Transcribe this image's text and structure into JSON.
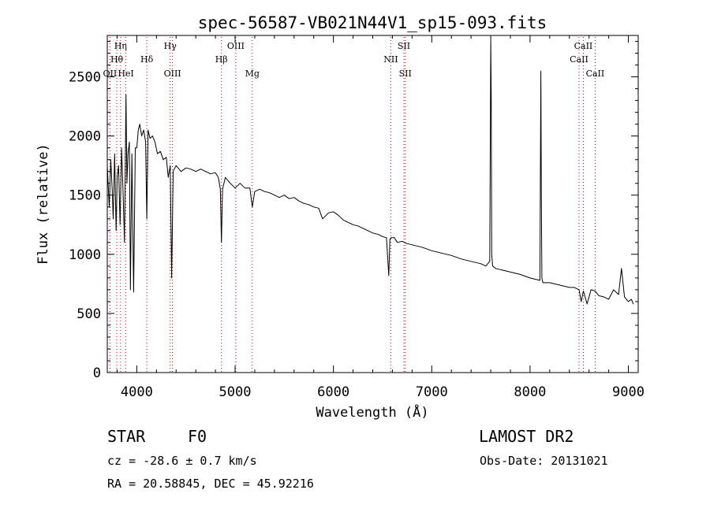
{
  "chart_data": {
    "type": "line",
    "title": "spec-56587-VB021N44V1_sp15-093.fits",
    "xlabel": "Wavelength (Å)",
    "ylabel": "Flux (relative)",
    "xlim": [
      3700,
      9100
    ],
    "ylim": [
      0,
      2850
    ],
    "x_ticks": [
      4000,
      5000,
      6000,
      7000,
      8000,
      9000
    ],
    "y_ticks": [
      0,
      500,
      1000,
      1500,
      2000,
      2500
    ],
    "grid": false,
    "series": [
      {
        "x": [
          3700,
          3720,
          3735,
          3750,
          3760,
          3775,
          3790,
          3800,
          3815,
          3830,
          3845,
          3860,
          3875,
          3890,
          3900,
          3910,
          3925,
          3935,
          3950,
          3968,
          3985,
          4000,
          4015,
          4030,
          4050,
          4070,
          4090,
          4102,
          4115,
          4135,
          4160,
          4185,
          4210,
          4240,
          4270,
          4300,
          4320,
          4340,
          4355,
          4370,
          4400,
          4450,
          4500,
          4550,
          4600,
          4650,
          4700,
          4750,
          4800,
          4830,
          4850,
          4861,
          4872,
          4900,
          4950,
          5000,
          5050,
          5100,
          5150,
          5175,
          5200,
          5250,
          5300,
          5350,
          5400,
          5450,
          5500,
          5550,
          5600,
          5650,
          5700,
          5750,
          5800,
          5850,
          5890,
          5950,
          6000,
          6050,
          6100,
          6150,
          6200,
          6250,
          6300,
          6350,
          6400,
          6450,
          6500,
          6540,
          6563,
          6575,
          6590,
          6620,
          6650,
          6700,
          6750,
          6800,
          6900,
          7000,
          7100,
          7200,
          7300,
          7400,
          7500,
          7550,
          7590,
          7600,
          7605,
          7610,
          7620,
          7650,
          7700,
          7800,
          7900,
          8000,
          8050,
          8100,
          8110,
          8115,
          8120,
          8130,
          8150,
          8200,
          8300,
          8400,
          8450,
          8498,
          8520,
          8542,
          8580,
          8620,
          8662,
          8700,
          8750,
          8800,
          8850,
          8900,
          8930,
          8960,
          9000,
          9030,
          9050
        ],
        "y": [
          1750,
          1400,
          1800,
          1550,
          1300,
          1850,
          1200,
          1650,
          1750,
          1250,
          1900,
          1550,
          1100,
          2350,
          1600,
          1850,
          1950,
          700,
          1850,
          680,
          1900,
          1900,
          2050,
          2100,
          2000,
          2050,
          1950,
          1300,
          2050,
          1980,
          2000,
          1950,
          1850,
          1870,
          1800,
          1820,
          1650,
          1750,
          800,
          1700,
          1750,
          1700,
          1730,
          1720,
          1700,
          1720,
          1700,
          1680,
          1690,
          1650,
          1550,
          1100,
          1550,
          1650,
          1600,
          1560,
          1600,
          1560,
          1560,
          1400,
          1530,
          1550,
          1530,
          1520,
          1500,
          1480,
          1500,
          1470,
          1480,
          1450,
          1430,
          1420,
          1400,
          1390,
          1300,
          1350,
          1360,
          1330,
          1290,
          1270,
          1250,
          1240,
          1220,
          1200,
          1180,
          1170,
          1150,
          1140,
          820,
          1130,
          1140,
          1140,
          1100,
          1110,
          1090,
          1080,
          1060,
          1030,
          1010,
          990,
          960,
          940,
          920,
          900,
          940,
          2820,
          2300,
          1000,
          900,
          880,
          870,
          850,
          830,
          800,
          790,
          780,
          2550,
          1500,
          800,
          760,
          760,
          760,
          740,
          720,
          720,
          700,
          600,
          690,
          580,
          700,
          690,
          650,
          640,
          620,
          700,
          660,
          880,
          640,
          600,
          620,
          580
        ]
      }
    ],
    "lines": [
      {
        "label": "Hη",
        "x": 3835,
        "color": "#cc0000",
        "row": 0
      },
      {
        "label": "Hθ",
        "x": 3797,
        "color": "#cc0000",
        "row": 1
      },
      {
        "label": "OII",
        "x": 3727,
        "color": "#cc0000",
        "row": 2
      },
      {
        "label": "HeI",
        "x": 3889,
        "color": "#cc0000",
        "row": 2
      },
      {
        "label": "Hδ",
        "x": 4102,
        "color": "#cc0000",
        "row": 1
      },
      {
        "label": "Hγ",
        "x": 4340,
        "color": "#cc0000",
        "row": 0
      },
      {
        "label": "OIII",
        "x": 4363,
        "color": "#cc0000",
        "row": 2
      },
      {
        "label": "Hβ",
        "x": 4861,
        "color": "#cc0000",
        "row": 1
      },
      {
        "label": "OIII",
        "x": 5007,
        "color": "#cc0000",
        "row": 0
      },
      {
        "label": "Mg",
        "x": 5175,
        "color": "#cc0000",
        "row": 2
      },
      {
        "label": "NII",
        "x": 6584,
        "color": "#cc0000",
        "row": 1
      },
      {
        "label": "SII",
        "x": 6717,
        "color": "#cc0000",
        "row": 0
      },
      {
        "label": "SII",
        "x": 6731,
        "color": "#cc0000",
        "row": 2
      },
      {
        "label": "CaII",
        "x": 8498,
        "color": "#cc0000",
        "row": 1
      },
      {
        "label": "CaII",
        "x": 8542,
        "color": "#cc0000",
        "row": 0
      },
      {
        "label": "CaII",
        "x": 8662,
        "color": "#cc0000",
        "row": 2
      }
    ]
  },
  "info": {
    "object_class": "STAR",
    "subclass": "F0",
    "survey": "LAMOST DR2",
    "cz": "cz = -28.6 ± 0.7 km/s",
    "obs_date": "Obs-Date: 20131021",
    "radec": "RA =  20.58845, DEC =  45.92216"
  }
}
